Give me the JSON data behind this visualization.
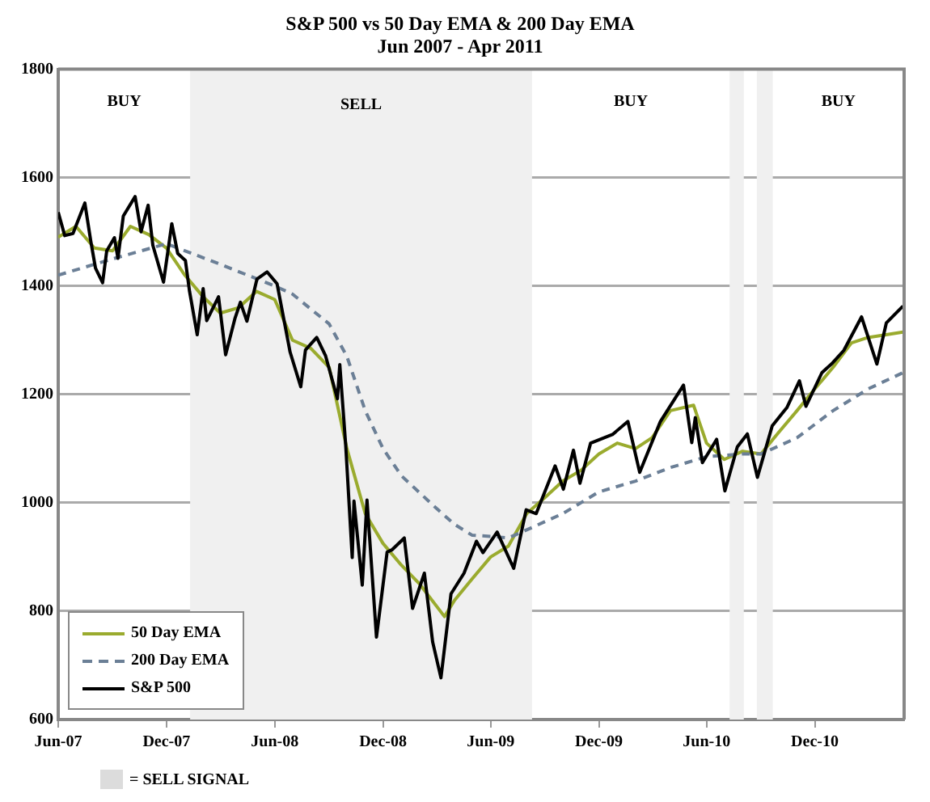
{
  "chart_data": {
    "type": "line",
    "title": "S&P 500 vs 50 Day EMA & 200 Day EMA",
    "subtitle": "Jun 2007 - Apr 2011",
    "xlim": [
      "2007-06-01",
      "2011-05-01"
    ],
    "xticks": [
      {
        "value": "2007-06-01",
        "label": "Jun-07"
      },
      {
        "value": "2007-12-01",
        "label": "Dec-07"
      },
      {
        "value": "2008-06-01",
        "label": "Jun-08"
      },
      {
        "value": "2008-12-01",
        "label": "Dec-08"
      },
      {
        "value": "2009-06-01",
        "label": "Jun-09"
      },
      {
        "value": "2009-12-01",
        "label": "Dec-09"
      },
      {
        "value": "2010-06-01",
        "label": "Jun-10"
      },
      {
        "value": "2010-12-01",
        "label": "Dec-10"
      }
    ],
    "ylim": [
      600,
      1800
    ],
    "yticks": [
      600,
      800,
      1000,
      1200,
      1400,
      1600,
      1800
    ],
    "grid": "y",
    "legend": "bottom left",
    "series": [
      {
        "name": "50 Day EMA",
        "color": "#9aab2e",
        "line_style": "solid",
        "x": [
          "2007-06-01",
          "2007-07-01",
          "2007-08-01",
          "2007-09-01",
          "2007-10-01",
          "2007-11-01",
          "2007-12-01",
          "2008-01-01",
          "2008-02-01",
          "2008-03-01",
          "2008-04-01",
          "2008-05-01",
          "2008-06-01",
          "2008-07-01",
          "2008-08-01",
          "2008-09-01",
          "2008-10-01",
          "2008-11-01",
          "2008-12-01",
          "2009-01-01",
          "2009-02-01",
          "2009-03-15",
          "2009-04-01",
          "2009-05-01",
          "2009-06-01",
          "2009-07-01",
          "2009-08-01",
          "2009-09-01",
          "2009-10-01",
          "2009-11-01",
          "2009-12-01",
          "2010-01-01",
          "2010-02-01",
          "2010-03-01",
          "2010-04-01",
          "2010-05-10",
          "2010-06-01",
          "2010-07-01",
          "2010-08-01",
          "2010-09-01",
          "2010-10-01",
          "2010-11-01",
          "2010-12-01",
          "2011-01-01",
          "2011-02-01",
          "2011-03-01",
          "2011-04-29"
        ],
        "values": [
          1490,
          1510,
          1470,
          1465,
          1510,
          1495,
          1470,
          1420,
          1380,
          1350,
          1360,
          1390,
          1375,
          1300,
          1285,
          1250,
          1100,
          980,
          925,
          885,
          850,
          790,
          820,
          860,
          900,
          920,
          980,
          1010,
          1040,
          1060,
          1090,
          1110,
          1100,
          1120,
          1170,
          1180,
          1110,
          1080,
          1095,
          1090,
          1130,
          1170,
          1210,
          1250,
          1295,
          1305,
          1315
        ]
      },
      {
        "name": "200 Day EMA",
        "color": "#6b7f96",
        "line_style": "dashed",
        "x": [
          "2007-06-01",
          "2007-09-01",
          "2007-12-01",
          "2008-03-01",
          "2008-06-01",
          "2008-07-01",
          "2008-09-01",
          "2008-10-01",
          "2008-11-01",
          "2008-12-01",
          "2009-01-01",
          "2009-03-01",
          "2009-04-01",
          "2009-05-01",
          "2009-06-01",
          "2009-07-01",
          "2009-08-01",
          "2009-10-01",
          "2009-12-01",
          "2010-02-01",
          "2010-04-01",
          "2010-06-01",
          "2010-08-01",
          "2010-09-01",
          "2010-11-01",
          "2011-01-01",
          "2011-03-01",
          "2011-04-29"
        ],
        "values": [
          1420,
          1450,
          1478,
          1440,
          1400,
          1385,
          1330,
          1270,
          1170,
          1100,
          1050,
          990,
          960,
          940,
          938,
          935,
          950,
          980,
          1020,
          1040,
          1065,
          1085,
          1090,
          1090,
          1120,
          1170,
          1210,
          1240
        ]
      },
      {
        "name": "S&P 500",
        "color": "#000000",
        "line_style": "solid",
        "x": [
          "2007-06-01",
          "2007-06-12",
          "2007-06-26",
          "2007-07-16",
          "2007-07-26",
          "2007-08-03",
          "2007-08-15",
          "2007-08-22",
          "2007-09-04",
          "2007-09-10",
          "2007-09-19",
          "2007-10-09",
          "2007-10-19",
          "2007-10-31",
          "2007-11-08",
          "2007-11-26",
          "2007-12-10",
          "2007-12-20",
          "2008-01-02",
          "2008-01-09",
          "2008-01-22",
          "2008-02-01",
          "2008-02-07",
          "2008-02-27",
          "2008-03-10",
          "2008-03-26",
          "2008-04-04",
          "2008-04-15",
          "2008-05-02",
          "2008-05-19",
          "2008-06-05",
          "2008-06-27",
          "2008-07-15",
          "2008-07-23",
          "2008-08-11",
          "2008-08-26",
          "2008-09-15",
          "2008-09-19",
          "2008-09-29",
          "2008-10-10",
          "2008-10-13",
          "2008-10-27",
          "2008-11-04",
          "2008-11-20",
          "2008-12-08",
          "2008-12-16",
          "2009-01-06",
          "2009-01-20",
          "2009-02-09",
          "2009-02-23",
          "2009-03-09",
          "2009-03-26",
          "2009-04-17",
          "2009-05-08",
          "2009-05-19",
          "2009-06-12",
          "2009-07-10",
          "2009-07-31",
          "2009-08-17",
          "2009-09-18",
          "2009-10-02",
          "2009-10-19",
          "2009-10-30",
          "2009-11-17",
          "2009-12-24",
          "2010-01-19",
          "2010-02-08",
          "2010-03-15",
          "2010-04-23",
          "2010-05-07",
          "2010-05-13",
          "2010-05-25",
          "2010-06-18",
          "2010-07-02",
          "2010-07-23",
          "2010-08-09",
          "2010-08-26",
          "2010-09-20",
          "2010-10-15",
          "2010-11-05",
          "2010-11-16",
          "2010-12-13",
          "2010-12-31",
          "2011-01-19",
          "2011-02-18",
          "2011-03-16",
          "2011-04-01",
          "2011-04-29"
        ],
        "values": [
          1536,
          1493,
          1497,
          1553,
          1483,
          1433,
          1406,
          1465,
          1489,
          1451,
          1529,
          1565,
          1500,
          1549,
          1475,
          1407,
          1515,
          1460,
          1447,
          1390,
          1310,
          1395,
          1336,
          1380,
          1273,
          1341,
          1370,
          1335,
          1413,
          1426,
          1404,
          1278,
          1214,
          1282,
          1305,
          1271,
          1192,
          1255,
          1106,
          899,
          1003,
          848,
          1005,
          752,
          909,
          913,
          935,
          805,
          870,
          743,
          677,
          832,
          870,
          929,
          908,
          946,
          879,
          987,
          980,
          1068,
          1025,
          1097,
          1036,
          1110,
          1126,
          1150,
          1056,
          1150,
          1217,
          1111,
          1157,
          1074,
          1117,
          1022,
          1103,
          1127,
          1047,
          1142,
          1176,
          1225,
          1178,
          1240,
          1258,
          1281,
          1343,
          1256,
          1332,
          1363
        ]
      }
    ],
    "bands": [
      {
        "axis": "x",
        "from": "2008-01-10",
        "to": "2009-08-10",
        "label": "SELL",
        "color": "#f0f0f0"
      },
      {
        "axis": "x",
        "from": "2010-07-10",
        "to": "2010-08-03",
        "color": "#f0f0f0"
      },
      {
        "axis": "x",
        "from": "2010-08-25",
        "to": "2010-09-21",
        "color": "#f0f0f0"
      }
    ],
    "annotations": [
      "BUY",
      "BUY",
      "BUY",
      "= SELL SIGNAL"
    ]
  }
}
